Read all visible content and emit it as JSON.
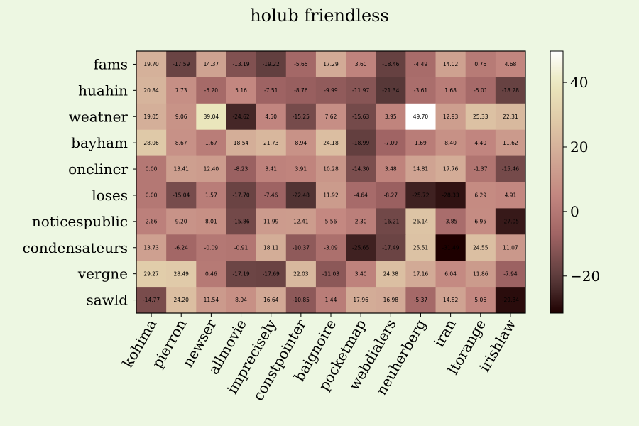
{
  "chart_data": {
    "type": "heatmap",
    "title": "holub friendless",
    "rows": [
      "fams",
      "huahin",
      "weatner",
      "bayham",
      "oneliner",
      "loses",
      "noticespublic",
      "condensateurs",
      "vergne",
      "sawld"
    ],
    "columns": [
      "kohima",
      "pierron",
      "newser",
      "allmovie",
      "imprecisely",
      "constpointer",
      "baignoire",
      "pocketmap",
      "webdialers",
      "neuherberg",
      "iran",
      "ltorange",
      "irishlaw"
    ],
    "values": [
      [
        19.7,
        -17.59,
        14.37,
        -13.19,
        -19.22,
        -5.65,
        17.29,
        3.6,
        -18.46,
        -4.49,
        14.02,
        0.76,
        4.68
      ],
      [
        20.84,
        7.73,
        -5.2,
        5.16,
        -7.51,
        -8.76,
        -9.99,
        -11.97,
        -21.34,
        -3.61,
        1.68,
        -5.01,
        -18.28
      ],
      [
        19.05,
        9.06,
        39.04,
        -24.62,
        4.5,
        -15.25,
        7.62,
        -15.63,
        3.95,
        49.7,
        12.93,
        25.33,
        22.31
      ],
      [
        28.06,
        8.67,
        1.67,
        18.54,
        21.73,
        8.94,
        24.18,
        -18.99,
        -7.09,
        1.69,
        8.4,
        4.4,
        11.62
      ],
      [
        0.0,
        13.41,
        12.4,
        -8.23,
        3.41,
        3.91,
        10.28,
        -14.3,
        3.48,
        14.81,
        17.76,
        -1.37,
        -15.46
      ],
      [
        0.0,
        -15.04,
        1.57,
        -17.7,
        -7.46,
        -22.48,
        11.92,
        -4.64,
        -8.27,
        -25.72,
        -28.33,
        6.29,
        4.91
      ],
      [
        2.66,
        9.2,
        8.01,
        -15.86,
        11.99,
        12.41,
        5.56,
        2.3,
        -16.21,
        26.14,
        -3.85,
        6.95,
        -27.05
      ],
      [
        13.73,
        -6.24,
        -0.09,
        -0.91,
        18.11,
        -10.37,
        -3.09,
        -25.65,
        -17.49,
        25.51,
        -31.49,
        24.55,
        11.07
      ],
      [
        29.27,
        28.49,
        0.46,
        -17.19,
        -17.69,
        22.03,
        -11.03,
        3.4,
        24.38,
        17.16,
        6.04,
        11.86,
        -7.94
      ],
      [
        -14.77,
        24.2,
        11.54,
        8.04,
        16.64,
        -10.85,
        1.44,
        17.96,
        16.98,
        -5.37,
        14.82,
        5.06,
        -29.34
      ]
    ],
    "value_labels": [
      [
        "19.70",
        "-17.59",
        "14.37",
        "-13.19",
        "-19.22",
        "-5.65",
        "17.29",
        "3.60",
        "-18.46",
        "-4.49",
        "14.02",
        "0.76",
        "4.68"
      ],
      [
        "20.84",
        "7.73",
        "-5.20",
        "5.16",
        "-7.51",
        "-8.76",
        "-9.99",
        "-11.97",
        "-21.34",
        "-3.61",
        "1.68",
        "-5.01",
        "-18.28"
      ],
      [
        "19.05",
        "9.06",
        "39.04",
        "-24.62",
        "4.50",
        "-15.25",
        "7.62",
        "-15.63",
        "3.95",
        "49.70",
        "12.93",
        "25.33",
        "22.31"
      ],
      [
        "28.06",
        "8.67",
        "1.67",
        "18.54",
        "21.73",
        "8.94",
        "24.18",
        "-18.99",
        "-7.09",
        "1.69",
        "8.40",
        "4.40",
        "11.62"
      ],
      [
        "0.00",
        "13.41",
        "12.40",
        "-8.23",
        "3.41",
        "3.91",
        "10.28",
        "-14.30",
        "3.48",
        "14.81",
        "17.76",
        "-1.37",
        "-15.46"
      ],
      [
        "0.00",
        "-15.04",
        "1.57",
        "-17.70",
        "-7.46",
        "-22.48",
        "11.92",
        "-4.64",
        "-8.27",
        "-25.72",
        "-28.33",
        "6.29",
        "4.91"
      ],
      [
        "2.66",
        "9.20",
        "8.01",
        "-15.86",
        "11.99",
        "12.41",
        "5.56",
        "2.30",
        "-16.21",
        "26.14",
        "-3.85",
        "6.95",
        "-27.05"
      ],
      [
        "13.73",
        "-6.24",
        "-0.09",
        "-0.91",
        "18.11",
        "-10.37",
        "-3.09",
        "-25.65",
        "-17.49",
        "25.51",
        "-31.49",
        "24.55",
        "11.07"
      ],
      [
        "29.27",
        "28.49",
        "0.46",
        "-17.19",
        "-17.69",
        "22.03",
        "-11.03",
        "3.40",
        "24.38",
        "17.16",
        "6.04",
        "11.86",
        "-7.94"
      ],
      [
        "-14.77",
        "24.20",
        "11.54",
        "8.04",
        "16.64",
        "-10.85",
        "1.44",
        "17.96",
        "16.98",
        "-5.37",
        "14.82",
        "5.06",
        "-29.34"
      ]
    ],
    "colorbar": {
      "range": [
        -31.49,
        49.7
      ],
      "ticks": [
        -20,
        0,
        20,
        40
      ],
      "tick_labels": [
        "−20",
        "0",
        "20",
        "40"
      ],
      "colormap": "pink"
    },
    "colors": {
      "background": "#edf7e2"
    }
  }
}
